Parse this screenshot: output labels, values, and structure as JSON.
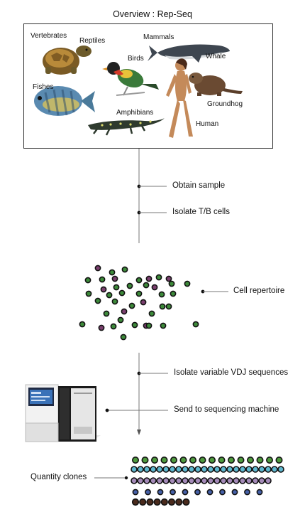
{
  "title": "Overview : Rep-Seq",
  "animals": {
    "vertebrates": "Vertebrates",
    "reptiles": "Reptiles",
    "mammals": "Mammals",
    "whale": "Whale",
    "birds": "Birds",
    "fishes": "Fishes",
    "amphibians": "Amphibians",
    "groundhog": "Groundhog",
    "human": "Human"
  },
  "steps": {
    "obtain": "Obtain sample",
    "isolate_cells": "Isolate T/B cells",
    "repertoire": "Cell repertoire",
    "isolate_vdj": "Isolate variable VDJ sequences",
    "sequencing": "Send to sequencing machine",
    "quantity": "Quantity clones"
  },
  "colors": {
    "green_cell": "#3d8a3a",
    "purple_cell": "#7a3f6e",
    "clone_green": "#4e9a3e",
    "clone_cyan": "#5fb8cf",
    "clone_lilac": "#a48ab8",
    "clone_blue": "#4560a8",
    "clone_brown": "#4a2a1c"
  }
}
